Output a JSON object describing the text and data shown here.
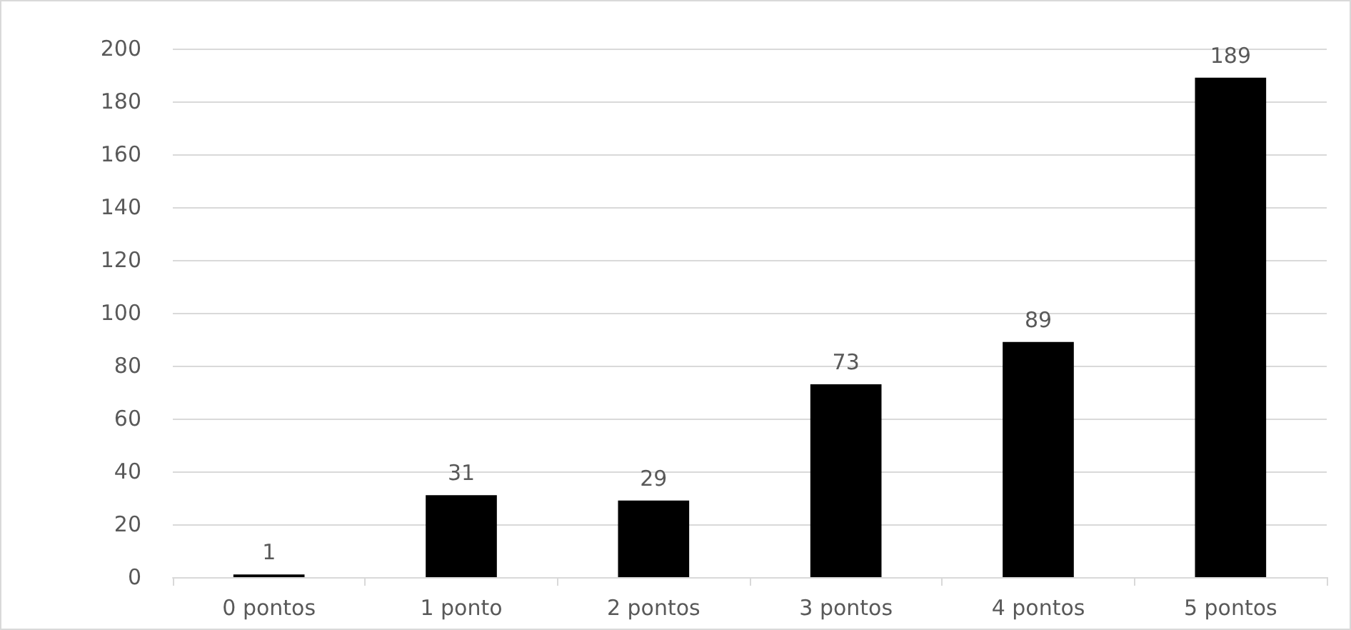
{
  "chart_data": {
    "type": "bar",
    "categories": [
      "0 pontos",
      "1 ponto",
      "2 pontos",
      "3 pontos",
      "4 pontos",
      "5 pontos"
    ],
    "values": [
      1,
      31,
      29,
      73,
      89,
      189
    ],
    "color": "#000000",
    "ylim": [
      0,
      200
    ],
    "yticks": [
      0,
      20,
      40,
      60,
      80,
      100,
      120,
      140,
      160,
      180,
      200
    ],
    "grid": "y",
    "data_labels": true
  }
}
